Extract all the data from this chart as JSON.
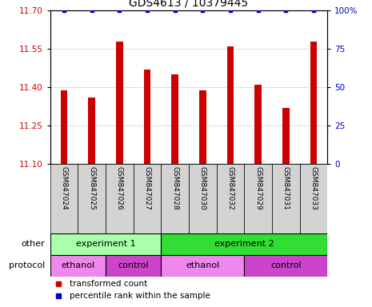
{
  "title": "GDS4613 / 10379445",
  "samples": [
    "GSM847024",
    "GSM847025",
    "GSM847026",
    "GSM847027",
    "GSM847028",
    "GSM847030",
    "GSM847032",
    "GSM847029",
    "GSM847031",
    "GSM847033"
  ],
  "bar_values": [
    11.39,
    11.36,
    11.58,
    11.47,
    11.45,
    11.39,
    11.56,
    11.41,
    11.32,
    11.58
  ],
  "percentile_values": [
    100,
    100,
    100,
    100,
    100,
    100,
    100,
    100,
    100,
    100
  ],
  "ylim": [
    11.1,
    11.7
  ],
  "ylim_right": [
    0,
    100
  ],
  "yticks_left": [
    11.1,
    11.25,
    11.4,
    11.55,
    11.7
  ],
  "yticks_right": [
    0,
    25,
    50,
    75,
    100
  ],
  "bar_color": "#cc0000",
  "dot_color": "#0000cc",
  "grid_color": "#aaaaaa",
  "label_color_left": "#cc0000",
  "label_color_right": "#0000cc",
  "bar_width": 0.25,
  "other_groups": [
    {
      "label": "experiment 1",
      "start": 0,
      "end": 4,
      "color": "#aaffaa"
    },
    {
      "label": "experiment 2",
      "start": 4,
      "end": 10,
      "color": "#33dd33"
    }
  ],
  "protocol_groups": [
    {
      "label": "ethanol",
      "start": 0,
      "end": 2,
      "color": "#ee88ee"
    },
    {
      "label": "control",
      "start": 2,
      "end": 4,
      "color": "#cc44cc"
    },
    {
      "label": "ethanol",
      "start": 4,
      "end": 7,
      "color": "#ee88ee"
    },
    {
      "label": "control",
      "start": 7,
      "end": 10,
      "color": "#cc44cc"
    }
  ],
  "legend_items": [
    {
      "label": "transformed count",
      "color": "#cc0000",
      "marker": "s"
    },
    {
      "label": "percentile rank within the sample",
      "color": "#0000cc",
      "marker": "s"
    }
  ],
  "row_labels": [
    "other",
    "protocol"
  ],
  "sample_bg_color": "#d3d3d3",
  "title_fontsize": 10,
  "tick_fontsize": 7.5,
  "sample_fontsize": 6.5,
  "annotation_fontsize": 8,
  "legend_fontsize": 7.5
}
